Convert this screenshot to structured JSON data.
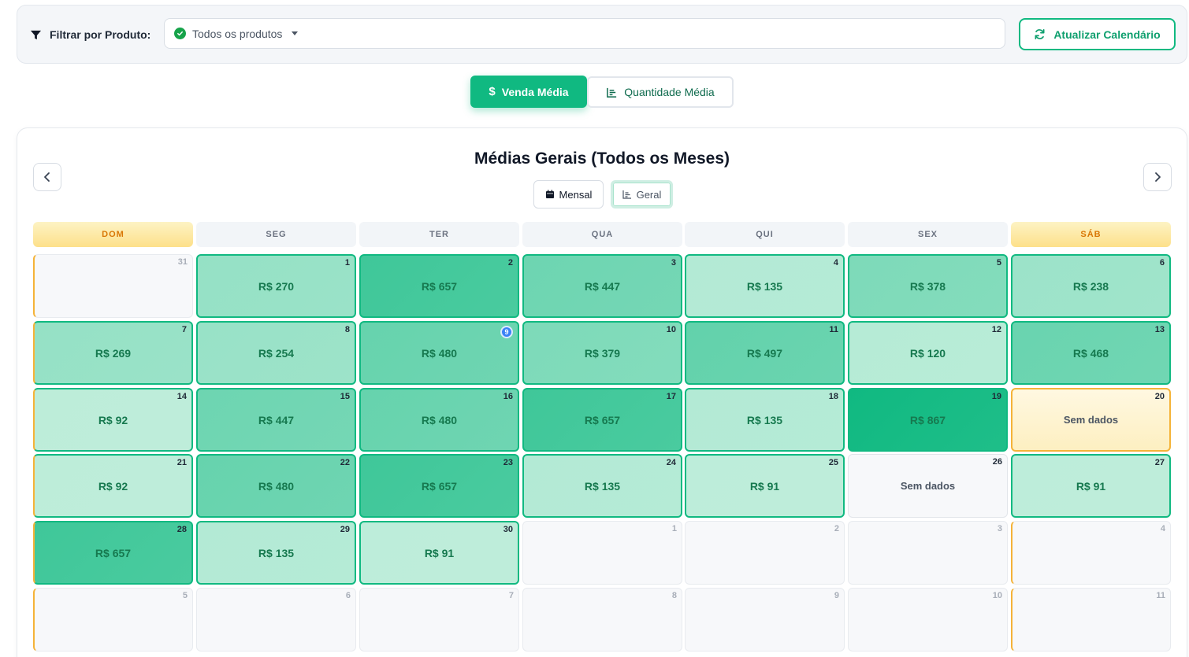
{
  "filter": {
    "label": "Filtrar por Produto:",
    "select_value": "Todos os produtos",
    "refresh_label": "Atualizar Calendário"
  },
  "metric_toggle": {
    "sales_label": "Venda Média",
    "quantity_label": "Quantidade Média"
  },
  "calendar": {
    "title": "Médias Gerais (Todos os Meses)",
    "view_monthly": "Mensal",
    "view_general": "Geral",
    "weekdays": [
      "DOM",
      "SEG",
      "TER",
      "QUA",
      "QUI",
      "SEX",
      "SÁB"
    ],
    "today_badge": "9",
    "no_data_label": "Sem dados",
    "days": [
      {
        "day": "31",
        "value": "",
        "kind": "empty",
        "intensity": 0
      },
      {
        "day": "1",
        "value": "R$ 270",
        "kind": "data",
        "intensity": 270
      },
      {
        "day": "2",
        "value": "R$ 657",
        "kind": "data",
        "intensity": 657
      },
      {
        "day": "3",
        "value": "R$ 447",
        "kind": "data",
        "intensity": 447
      },
      {
        "day": "4",
        "value": "R$ 135",
        "kind": "data",
        "intensity": 135
      },
      {
        "day": "5",
        "value": "R$ 378",
        "kind": "data",
        "intensity": 378
      },
      {
        "day": "6",
        "value": "R$ 238",
        "kind": "data",
        "intensity": 238
      },
      {
        "day": "7",
        "value": "R$ 269",
        "kind": "data",
        "intensity": 269
      },
      {
        "day": "8",
        "value": "R$ 254",
        "kind": "data",
        "intensity": 254
      },
      {
        "day": "9",
        "value": "R$ 480",
        "kind": "data",
        "intensity": 480,
        "today": true
      },
      {
        "day": "10",
        "value": "R$ 379",
        "kind": "data",
        "intensity": 379
      },
      {
        "day": "11",
        "value": "R$ 497",
        "kind": "data",
        "intensity": 497
      },
      {
        "day": "12",
        "value": "R$ 120",
        "kind": "data",
        "intensity": 120
      },
      {
        "day": "13",
        "value": "R$ 468",
        "kind": "data",
        "intensity": 468
      },
      {
        "day": "14",
        "value": "R$ 92",
        "kind": "data",
        "intensity": 92
      },
      {
        "day": "15",
        "value": "R$ 447",
        "kind": "data",
        "intensity": 447
      },
      {
        "day": "16",
        "value": "R$ 480",
        "kind": "data",
        "intensity": 480
      },
      {
        "day": "17",
        "value": "R$ 657",
        "kind": "data",
        "intensity": 657
      },
      {
        "day": "18",
        "value": "R$ 135",
        "kind": "data",
        "intensity": 135
      },
      {
        "day": "19",
        "value": "R$ 867",
        "kind": "data",
        "intensity": 867
      },
      {
        "day": "20",
        "value": "Sem dados",
        "kind": "nodata-weekend",
        "intensity": 0
      },
      {
        "day": "21",
        "value": "R$ 92",
        "kind": "data",
        "intensity": 92
      },
      {
        "day": "22",
        "value": "R$ 480",
        "kind": "data",
        "intensity": 480
      },
      {
        "day": "23",
        "value": "R$ 657",
        "kind": "data",
        "intensity": 657
      },
      {
        "day": "24",
        "value": "R$ 135",
        "kind": "data",
        "intensity": 135
      },
      {
        "day": "25",
        "value": "R$ 91",
        "kind": "data",
        "intensity": 91
      },
      {
        "day": "26",
        "value": "Sem dados",
        "kind": "nodata",
        "intensity": 0
      },
      {
        "day": "27",
        "value": "R$ 91",
        "kind": "data",
        "intensity": 91
      },
      {
        "day": "28",
        "value": "R$ 657",
        "kind": "data",
        "intensity": 657
      },
      {
        "day": "29",
        "value": "R$ 135",
        "kind": "data",
        "intensity": 135
      },
      {
        "day": "30",
        "value": "R$ 91",
        "kind": "data",
        "intensity": 91
      },
      {
        "day": "1",
        "value": "",
        "kind": "empty",
        "intensity": 0
      },
      {
        "day": "2",
        "value": "",
        "kind": "empty",
        "intensity": 0
      },
      {
        "day": "3",
        "value": "",
        "kind": "empty",
        "intensity": 0
      },
      {
        "day": "4",
        "value": "",
        "kind": "empty",
        "intensity": 0
      },
      {
        "day": "5",
        "value": "",
        "kind": "empty",
        "intensity": 0
      },
      {
        "day": "6",
        "value": "",
        "kind": "empty",
        "intensity": 0
      },
      {
        "day": "7",
        "value": "",
        "kind": "empty",
        "intensity": 0
      },
      {
        "day": "8",
        "value": "",
        "kind": "empty",
        "intensity": 0
      },
      {
        "day": "9",
        "value": "",
        "kind": "empty",
        "intensity": 0
      },
      {
        "day": "10",
        "value": "",
        "kind": "empty",
        "intensity": 0
      },
      {
        "day": "11",
        "value": "",
        "kind": "empty",
        "intensity": 0
      }
    ]
  },
  "colors": {
    "accent": "#10b981",
    "weekend_border": "#f5b338"
  }
}
